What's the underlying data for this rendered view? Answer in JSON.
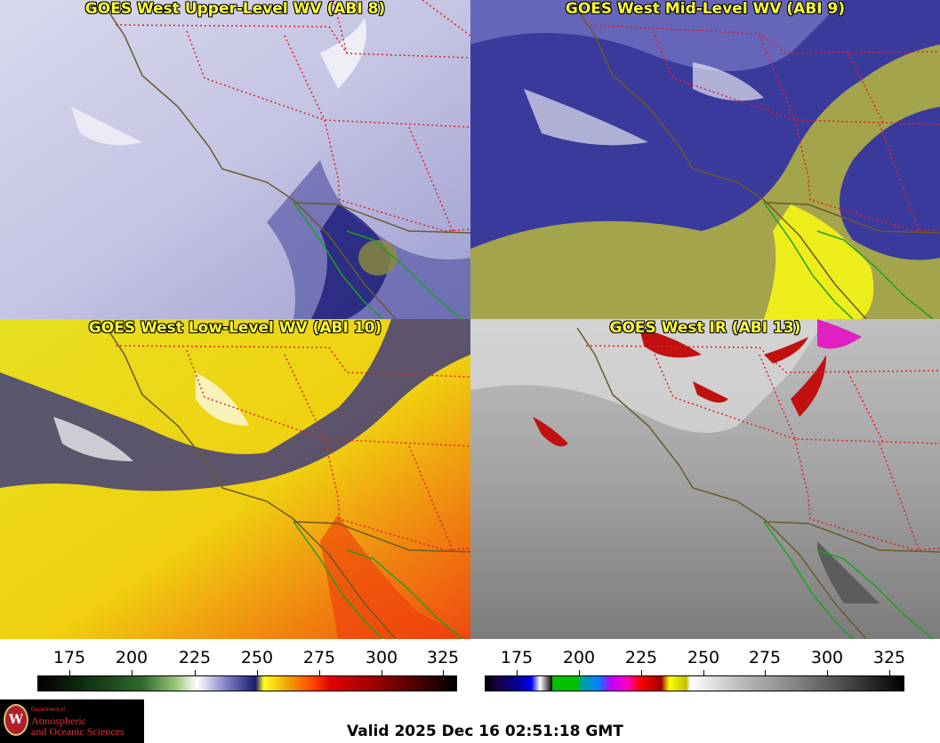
{
  "panels": [
    {
      "title": "GOES West Upper-Level WV (ABI 8)",
      "palette": "wv"
    },
    {
      "title": "GOES West Mid-Level WV (ABI 9)",
      "palette": "wv-mid"
    },
    {
      "title": "GOES West Low-Level WV (ABI 10)",
      "palette": "wv-low"
    },
    {
      "title": "GOES West IR (ABI 13)",
      "palette": "ir"
    }
  ],
  "colorbars": [
    {
      "ticks": [
        "175",
        "200",
        "225",
        "250",
        "275",
        "300",
        "325"
      ]
    },
    {
      "ticks": [
        "175",
        "200",
        "225",
        "250",
        "275",
        "300",
        "325"
      ]
    }
  ],
  "logo": {
    "dept": "Department of",
    "line1": "Atmospheric",
    "line2": "and Oceanic Sciences",
    "seal": "W"
  },
  "valid_time": "Valid 2025 Dec 16 02:51:18 GMT",
  "colors": {
    "title": "#ffff33",
    "state_border": "#e02020",
    "coast": "#6b5a2a",
    "mexico_coast": "#1fa01f"
  }
}
